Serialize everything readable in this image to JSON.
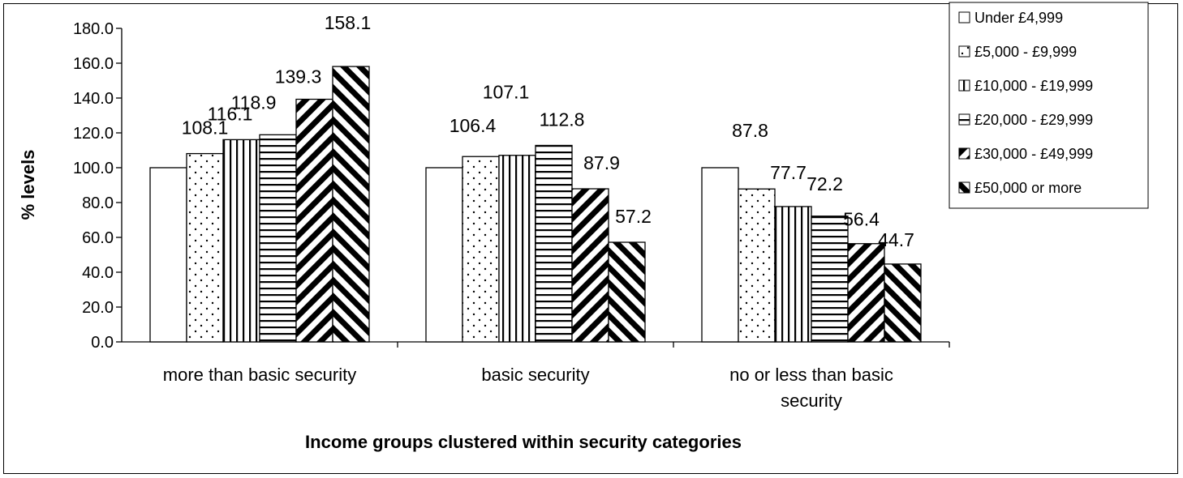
{
  "chart_data": {
    "type": "bar",
    "xlabel": "Income groups clustered within security categories",
    "ylabel": "% levels",
    "ylim": [
      0,
      180
    ],
    "yticks": [
      "0.0",
      "20.0",
      "40.0",
      "60.0",
      "80.0",
      "100.0",
      "120.0",
      "140.0",
      "160.0",
      "180.0"
    ],
    "grid": false,
    "legend_position": "top-right",
    "categories": [
      [
        "more than basic security"
      ],
      [
        "basic security"
      ],
      [
        "no or less than basic",
        "security"
      ]
    ],
    "series": [
      {
        "name": "Under £4,999",
        "pattern": "blank",
        "values": [
          100.0,
          100.0,
          100.0
        ],
        "labels": [
          "",
          "",
          ""
        ]
      },
      {
        "name": "£5,000 - £9,999",
        "pattern": "dots",
        "values": [
          108.1,
          106.4,
          87.8
        ],
        "labels": [
          "108.1",
          "106.4",
          "87.8"
        ]
      },
      {
        "name": "£10,000 - £19,999",
        "pattern": "vertical",
        "values": [
          116.1,
          107.1,
          77.7
        ],
        "labels": [
          "116.1",
          "107.1",
          "77.7"
        ]
      },
      {
        "name": "£20,000 - £29,999",
        "pattern": "horizontal",
        "values": [
          118.9,
          112.8,
          72.2
        ],
        "labels": [
          "118.9",
          "112.8",
          "72.2"
        ]
      },
      {
        "name": "£30,000 - £49,999",
        "pattern": "diag-down",
        "values": [
          139.3,
          87.9,
          56.4
        ],
        "labels": [
          "139.3",
          "87.9",
          "56.4"
        ]
      },
      {
        "name": "£50,000 or more",
        "pattern": "diag-up",
        "values": [
          158.1,
          57.2,
          44.7
        ],
        "labels": [
          "158.1",
          "57.2",
          "44.7"
        ]
      }
    ]
  }
}
